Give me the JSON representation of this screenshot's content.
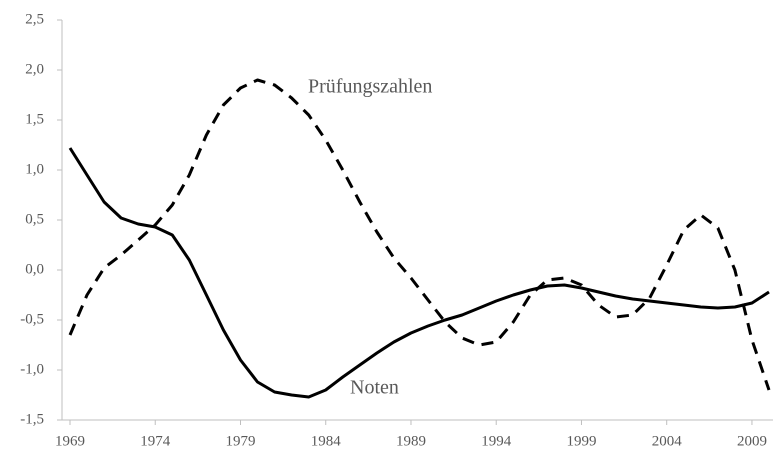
{
  "chart_data": {
    "type": "line",
    "x": [
      1969,
      1970,
      1971,
      1972,
      1973,
      1974,
      1975,
      1976,
      1977,
      1978,
      1979,
      1980,
      1981,
      1982,
      1983,
      1984,
      1985,
      1986,
      1987,
      1988,
      1989,
      1990,
      1991,
      1992,
      1993,
      1994,
      1995,
      1996,
      1997,
      1998,
      1999,
      2000,
      2001,
      2002,
      2003,
      2004,
      2005,
      2006,
      2007,
      2008,
      2009,
      2010
    ],
    "series": [
      {
        "name": "Noten",
        "color": "#000000",
        "dash": "solid",
        "values": [
          1.22,
          0.95,
          0.68,
          0.52,
          0.46,
          0.43,
          0.35,
          0.1,
          -0.25,
          -0.6,
          -0.9,
          -1.12,
          -1.22,
          -1.25,
          -1.27,
          -1.2,
          -1.07,
          -0.95,
          -0.83,
          -0.72,
          -0.63,
          -0.56,
          -0.5,
          -0.45,
          -0.38,
          -0.31,
          -0.25,
          -0.2,
          -0.16,
          -0.15,
          -0.18,
          -0.22,
          -0.26,
          -0.29,
          -0.31,
          -0.33,
          -0.35,
          -0.37,
          -0.38,
          -0.37,
          -0.33,
          -0.22
        ]
      },
      {
        "name": "Prüfungszahlen",
        "color": "#000000",
        "dash": "dashed",
        "values": [
          -0.65,
          -0.25,
          0.02,
          0.15,
          0.3,
          0.45,
          0.65,
          0.95,
          1.35,
          1.65,
          1.82,
          1.9,
          1.85,
          1.72,
          1.55,
          1.3,
          1.0,
          0.68,
          0.38,
          0.12,
          -0.08,
          -0.3,
          -0.52,
          -0.68,
          -0.75,
          -0.72,
          -0.52,
          -0.25,
          -0.1,
          -0.08,
          -0.15,
          -0.35,
          -0.47,
          -0.45,
          -0.28,
          0.05,
          0.4,
          0.55,
          0.42,
          0.0,
          -0.7,
          -1.2
        ]
      }
    ],
    "xlim": [
      1969,
      2010
    ],
    "xticks": [
      1969,
      1974,
      1979,
      1984,
      1989,
      1994,
      1999,
      2004,
      2009
    ],
    "ylim": [
      -1.5,
      2.5
    ],
    "yticks": [
      {
        "value": -1.5,
        "label": "-1,5"
      },
      {
        "value": -1,
        "label": "-1,0"
      },
      {
        "value": -0.5,
        "label": "-0,5"
      },
      {
        "value": 0,
        "label": "0,0"
      },
      {
        "value": 0.5,
        "label": "0,5"
      },
      {
        "value": 1,
        "label": "1,0"
      },
      {
        "value": 1.5,
        "label": "1,5"
      },
      {
        "value": 2,
        "label": "2,0"
      },
      {
        "value": 2.5,
        "label": "2,5"
      }
    ],
    "grid": false
  }
}
